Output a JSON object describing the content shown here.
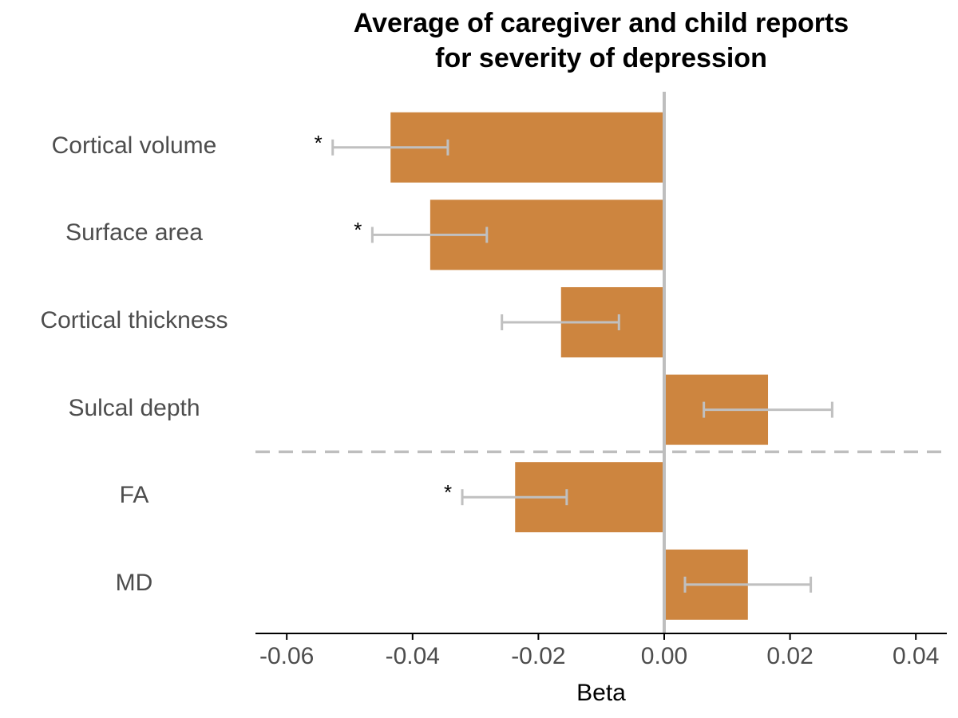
{
  "chart_data": {
    "type": "bar",
    "orientation": "horizontal",
    "title": "Average of caregiver and child reports",
    "subtitle": "for severity of depression",
    "xlabel": "Beta",
    "ylabel": "",
    "xlim": [
      -0.065,
      0.045
    ],
    "xticks": [
      -0.06,
      -0.04,
      -0.02,
      0.0,
      0.02,
      0.04
    ],
    "xtick_labels": [
      "-0.06",
      "-0.04",
      "-0.02",
      "0.00",
      "0.02",
      "0.04"
    ],
    "categories": [
      "Cortical volume",
      "Surface area",
      "Cortical thickness",
      "Sulcal depth",
      "FA",
      "MD"
    ],
    "values": [
      -0.0435,
      -0.0372,
      -0.0164,
      0.0165,
      -0.0237,
      0.0133
    ],
    "ci_low": [
      -0.0527,
      -0.0464,
      -0.0258,
      0.0063,
      -0.0321,
      0.0033
    ],
    "ci_high": [
      -0.0344,
      -0.0282,
      -0.0072,
      0.0267,
      -0.0155,
      0.0233
    ],
    "significance": [
      "*",
      "*",
      "",
      "",
      "*",
      ""
    ],
    "group_divider_after": "Sulcal depth",
    "bar_color": "#CD853F",
    "errorbar_color": "#C0C0C0",
    "zero_line_color": "#BEBEBE",
    "grid": false,
    "legend": "none"
  }
}
